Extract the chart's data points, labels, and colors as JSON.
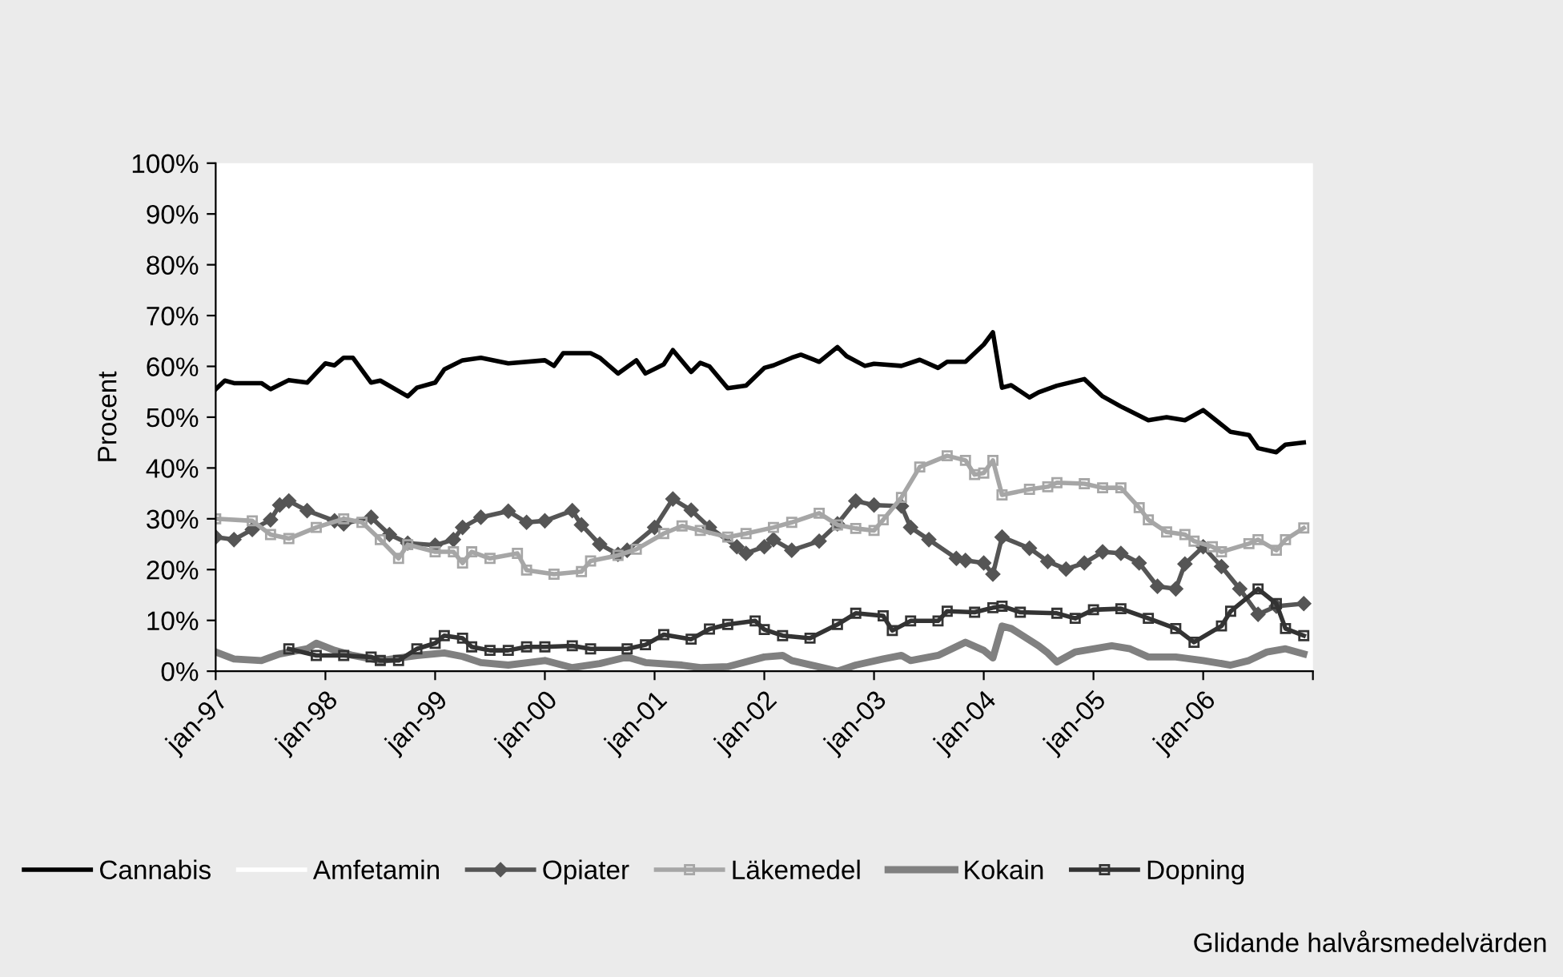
{
  "chart_data": {
    "type": "line",
    "ylabel": "Procent",
    "legend": "bottom",
    "grid": false,
    "annotations": [
      "Glidande halvårsmedelvärden"
    ],
    "xlim": [
      "1997-01",
      "2007-01"
    ],
    "xticks": [
      {
        "value": "1997-01",
        "label": "jan-97"
      },
      {
        "value": "1998-01",
        "label": "jan-98"
      },
      {
        "value": "1999-01",
        "label": "jan-99"
      },
      {
        "value": "2000-01",
        "label": "jan-00"
      },
      {
        "value": "2001-01",
        "label": "jan-01"
      },
      {
        "value": "2002-01",
        "label": "jan-02"
      },
      {
        "value": "2003-01",
        "label": "jan-03"
      },
      {
        "value": "2004-01",
        "label": "jan-04"
      },
      {
        "value": "2005-01",
        "label": "jan-05"
      },
      {
        "value": "2006-01",
        "label": "jan-06"
      },
      {
        "value": "2007-01",
        "label": null
      }
    ],
    "ylim": [
      0,
      100
    ],
    "yticks": [
      {
        "value": 0,
        "label": "0%"
      },
      {
        "value": 10,
        "label": "10%"
      },
      {
        "value": 20,
        "label": "20%"
      },
      {
        "value": 30,
        "label": "30%"
      },
      {
        "value": 40,
        "label": "40%"
      },
      {
        "value": 50,
        "label": "50%"
      },
      {
        "value": 60,
        "label": "60%"
      },
      {
        "value": 70,
        "label": "70%"
      },
      {
        "value": 80,
        "label": "80%"
      },
      {
        "value": 90,
        "label": "90%"
      },
      {
        "value": 100,
        "label": "100%"
      }
    ],
    "series": [
      {
        "name": "Cannabis",
        "color": "#000000",
        "marker": "none",
        "x": [
          "1997-01",
          "1997-02",
          "1997-03",
          "1997-06",
          "1997-07",
          "1997-09",
          "1997-11",
          "1998-01",
          "1998-02",
          "1998-03",
          "1998-04",
          "1998-06",
          "1998-07",
          "1998-10",
          "1998-11",
          "1999-01",
          "1999-02",
          "1999-04",
          "1999-06",
          "1999-09",
          "2000-01",
          "2000-02",
          "2000-03",
          "2000-06",
          "2000-07",
          "2000-09",
          "2000-11",
          "2000-12",
          "2001-02",
          "2001-03",
          "2001-05",
          "2001-06",
          "2001-07",
          "2001-09",
          "2001-11",
          "2002-01",
          "2002-02",
          "2002-04",
          "2002-05",
          "2002-07",
          "2002-09",
          "2002-10",
          "2002-12",
          "2003-01",
          "2003-04",
          "2003-06",
          "2003-08",
          "2003-09",
          "2003-11",
          "2004-01",
          "2004-02",
          "2004-03",
          "2004-04",
          "2004-06",
          "2004-07",
          "2004-09",
          "2004-12",
          "2005-02",
          "2005-04",
          "2005-07",
          "2005-09",
          "2005-11",
          "2006-01",
          "2006-04",
          "2006-06",
          "2006-07",
          "2006-09",
          "2006-10",
          "2006-12"
        ],
        "values": [
          55.5,
          57.2,
          56.7,
          56.7,
          55.5,
          57.3,
          56.8,
          60.6,
          60.2,
          61.7,
          61.7,
          56.8,
          57.2,
          54.1,
          55.8,
          56.8,
          59.4,
          61.2,
          61.7,
          60.6,
          61.2,
          60.1,
          62.6,
          62.6,
          61.7,
          58.6,
          61.2,
          58.6,
          60.4,
          63.2,
          58.9,
          60.7,
          60.0,
          55.7,
          56.2,
          59.7,
          60.2,
          61.7,
          62.3,
          60.9,
          63.8,
          62.0,
          60.1,
          60.5,
          60.1,
          61.3,
          59.7,
          60.9,
          60.9,
          64.3,
          66.7,
          55.8,
          56.3,
          53.9,
          54.9,
          56.2,
          57.5,
          54.1,
          52.1,
          49.4,
          50.0,
          49.4,
          51.4,
          47.1,
          46.5,
          43.9,
          43.1,
          44.6,
          45.0
        ]
      },
      {
        "name": "Amfetamin",
        "color": "#ffffff",
        "marker": "none"
      },
      {
        "name": "Opiater",
        "color": "#555555",
        "marker": "diamond",
        "x": [
          "1997-01",
          "1997-03",
          "1997-05",
          "1997-07",
          "1997-08",
          "1997-09",
          "1997-11",
          "1998-02",
          "1998-03",
          "1998-06",
          "1998-08",
          "1998-10",
          "1999-01",
          "1999-03",
          "1999-04",
          "1999-06",
          "1999-09",
          "1999-11",
          "2000-01",
          "2000-04",
          "2000-05",
          "2000-07",
          "2000-09",
          "2000-10",
          "2001-01",
          "2001-03",
          "2001-05",
          "2001-07",
          "2001-10",
          "2001-11",
          "2002-01",
          "2002-02",
          "2002-04",
          "2002-07",
          "2002-09",
          "2002-11",
          "2003-01",
          "2003-04",
          "2003-05",
          "2003-07",
          "2003-10",
          "2003-11",
          "2004-01",
          "2004-02",
          "2004-03",
          "2004-06",
          "2004-08",
          "2004-10",
          "2004-12",
          "2005-02",
          "2005-04",
          "2005-06",
          "2005-08",
          "2005-10",
          "2005-11",
          "2006-01",
          "2006-03",
          "2006-05",
          "2006-07",
          "2006-09",
          "2006-12"
        ],
        "values": [
          26.4,
          25.9,
          27.9,
          29.8,
          32.7,
          33.5,
          31.6,
          29.6,
          29.0,
          30.3,
          26.9,
          25.2,
          24.8,
          25.9,
          28.3,
          30.3,
          31.5,
          29.3,
          29.6,
          31.6,
          28.8,
          25.0,
          23.0,
          23.8,
          28.3,
          33.9,
          31.7,
          28.3,
          24.5,
          23.2,
          24.5,
          25.9,
          23.8,
          25.6,
          29.0,
          33.5,
          32.7,
          32.5,
          28.3,
          25.9,
          22.2,
          21.8,
          21.3,
          19.1,
          26.4,
          24.2,
          21.6,
          20.1,
          21.3,
          23.5,
          23.2,
          21.3,
          16.7,
          16.2,
          21.1,
          24.5,
          20.6,
          16.2,
          11.2,
          12.8,
          13.3
        ]
      },
      {
        "name": "Läkemedel",
        "color": "#a6a6a6",
        "marker": "square",
        "x": [
          "1997-01",
          "1997-05",
          "1997-07",
          "1997-09",
          "1997-12",
          "1998-03",
          "1998-05",
          "1998-07",
          "1998-09",
          "1998-10",
          "1999-01",
          "1999-03",
          "1999-04",
          "1999-05",
          "1999-07",
          "1999-10",
          "1999-11",
          "2000-02",
          "2000-05",
          "2000-06",
          "2000-09",
          "2000-11",
          "2001-02",
          "2001-04",
          "2001-06",
          "2001-09",
          "2001-11",
          "2002-02",
          "2002-04",
          "2002-07",
          "2002-09",
          "2002-11",
          "2003-01",
          "2003-02",
          "2003-04",
          "2003-06",
          "2003-09",
          "2003-11",
          "2003-12",
          "2004-01",
          "2004-02",
          "2004-03",
          "2004-06",
          "2004-08",
          "2004-09",
          "2004-12",
          "2005-02",
          "2005-04",
          "2005-06",
          "2005-07",
          "2005-09",
          "2005-11",
          "2005-12",
          "2006-02",
          "2006-03",
          "2006-06",
          "2006-07",
          "2006-09",
          "2006-10",
          "2006-12"
        ],
        "values": [
          30.0,
          29.6,
          26.9,
          26.1,
          28.3,
          30.0,
          29.3,
          25.9,
          22.2,
          24.9,
          23.5,
          23.5,
          21.3,
          23.5,
          22.2,
          23.2,
          19.9,
          19.1,
          19.6,
          21.7,
          22.8,
          24.0,
          27.1,
          28.6,
          27.7,
          26.4,
          27.1,
          28.3,
          29.3,
          31.1,
          28.8,
          28.1,
          27.7,
          29.8,
          34.2,
          40.2,
          42.4,
          41.5,
          38.7,
          39.0,
          41.5,
          34.7,
          35.8,
          36.3,
          37.1,
          36.9,
          36.1,
          36.1,
          32.2,
          29.8,
          27.4,
          26.9,
          25.6,
          24.5,
          23.5,
          25.1,
          25.9,
          23.8,
          25.9,
          28.2
        ]
      },
      {
        "name": "Kokain",
        "color": "#808080",
        "marker": "none",
        "x": [
          "1997-01",
          "1997-03",
          "1997-06",
          "1997-08",
          "1997-11",
          "1997-12",
          "1998-02",
          "1998-04",
          "1998-07",
          "1998-11",
          "1999-02",
          "1999-04",
          "1999-06",
          "1999-09",
          "2000-01",
          "2000-04",
          "2000-07",
          "2000-10",
          "2000-12",
          "2001-04",
          "2001-06",
          "2001-09",
          "2002-01",
          "2002-03",
          "2002-04",
          "2002-09",
          "2002-11",
          "2003-02",
          "2003-04",
          "2003-05",
          "2003-08",
          "2003-11",
          "2004-01",
          "2004-02",
          "2004-03",
          "2004-04",
          "2004-07",
          "2004-08",
          "2004-09",
          "2004-11",
          "2005-03",
          "2005-05",
          "2005-07",
          "2005-10",
          "2006-01",
          "2006-04",
          "2006-06",
          "2006-08",
          "2006-10",
          "2006-12"
        ],
        "values": [
          3.8,
          2.4,
          2.1,
          3.4,
          4.4,
          5.5,
          4.1,
          3.1,
          2.1,
          3.1,
          3.6,
          2.9,
          1.7,
          1.2,
          2.1,
          0.7,
          1.5,
          2.8,
          1.7,
          1.2,
          0.7,
          0.9,
          2.8,
          3.1,
          2.1,
          0.0,
          1.2,
          2.4,
          3.1,
          2.1,
          3.1,
          5.7,
          4.1,
          2.6,
          8.9,
          8.4,
          5.0,
          3.6,
          1.8,
          3.8,
          5.0,
          4.4,
          2.8,
          2.8,
          2.1,
          1.2,
          2.1,
          3.8,
          4.4,
          3.4
        ]
      },
      {
        "name": "Dopning",
        "color": "#333333",
        "marker": "square",
        "x": [
          "1997-09",
          "1997-12",
          "1998-03",
          "1998-06",
          "1998-07",
          "1998-09",
          "1998-11",
          "1999-01",
          "1999-02",
          "1999-04",
          "1999-05",
          "1999-07",
          "1999-09",
          "1999-11",
          "2000-01",
          "2000-04",
          "2000-06",
          "2000-10",
          "2000-12",
          "2001-02",
          "2001-05",
          "2001-07",
          "2001-09",
          "2001-12",
          "2002-01",
          "2002-03",
          "2002-06",
          "2002-09",
          "2002-11",
          "2003-02",
          "2003-03",
          "2003-05",
          "2003-08",
          "2003-09",
          "2003-12",
          "2004-02",
          "2004-03",
          "2004-05",
          "2004-09",
          "2004-11",
          "2005-01",
          "2005-04",
          "2005-07",
          "2005-10",
          "2005-12",
          "2006-03",
          "2006-04",
          "2006-07",
          "2006-09",
          "2006-10",
          "2006-12"
        ],
        "values": [
          4.4,
          3.1,
          3.1,
          2.8,
          2.1,
          2.1,
          4.4,
          5.5,
          7.0,
          6.5,
          4.8,
          4.1,
          4.1,
          4.8,
          4.8,
          5.0,
          4.4,
          4.4,
          5.2,
          7.2,
          6.3,
          8.3,
          9.2,
          9.9,
          8.2,
          7.0,
          6.5,
          9.2,
          11.4,
          10.9,
          8.0,
          9.9,
          9.9,
          11.8,
          11.6,
          12.5,
          12.8,
          11.6,
          11.4,
          10.4,
          12.1,
          12.3,
          10.4,
          8.4,
          5.7,
          8.9,
          11.8,
          16.2,
          13.3,
          8.4,
          7.0
        ]
      }
    ]
  }
}
